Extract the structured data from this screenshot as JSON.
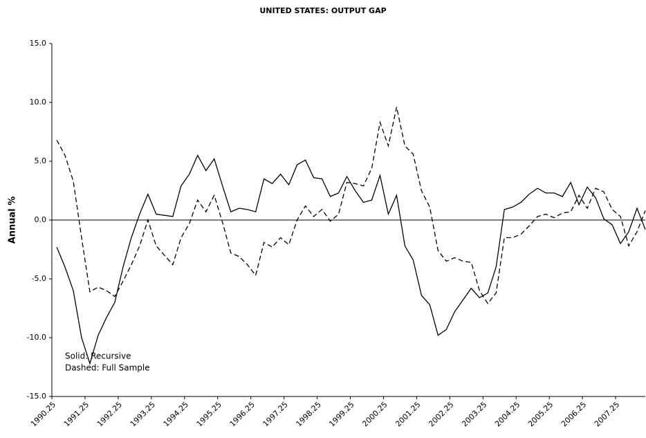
{
  "chart_data": {
    "type": "line",
    "title": "UNITED STATES: OUTPUT GAP",
    "ylabel": "Annual %",
    "annotations": [
      "Solid: Recursive",
      "Dashed: Full Sample"
    ],
    "x": [
      1990.25,
      1990.5,
      1990.75,
      1991,
      1991.25,
      1991.5,
      1991.75,
      1992,
      1992.25,
      1992.5,
      1992.75,
      1993,
      1993.25,
      1993.5,
      1993.75,
      1994,
      1994.25,
      1994.5,
      1994.75,
      1995,
      1995.25,
      1995.5,
      1995.75,
      1996,
      1996.25,
      1996.5,
      1996.75,
      1997,
      1997.25,
      1997.5,
      1997.75,
      1998,
      1998.25,
      1998.5,
      1998.75,
      1999,
      1999.25,
      1999.5,
      1999.75,
      2000,
      2000.25,
      2000.5,
      2000.75,
      2001,
      2001.25,
      2001.5,
      2001.75,
      2002,
      2002.25,
      2002.5,
      2002.75,
      2003,
      2003.25,
      2003.5,
      2003.75,
      2004,
      2004.25,
      2004.5,
      2004.75,
      2005,
      2005.25,
      2005.5,
      2005.75,
      2006,
      2006.25,
      2006.5,
      2006.75,
      2007,
      2007.25,
      2007.5,
      2007.75,
      2008
    ],
    "series": [
      {
        "color": "#000000",
        "style": "solid",
        "values": [
          -2.3,
          -4,
          -6,
          -10,
          -12.2,
          -9.8,
          -8.3,
          -7,
          -4,
          -1.5,
          0.5,
          2.2,
          0.5,
          0.4,
          0.3,
          2.9,
          3.9,
          5.5,
          4.2,
          5.2,
          2.9,
          0.7,
          1.0,
          0.9,
          0.7,
          3.5,
          3.1,
          3.9,
          3.0,
          4.7,
          5.1,
          3.6,
          3.5,
          2.0,
          2.3,
          3.7,
          2.5,
          1.5,
          1.7,
          3.8,
          0.5,
          2.1,
          -2.2,
          -3.4,
          -6.4,
          -7.2,
          -9.8,
          -9.3,
          -7.8,
          -6.8,
          -5.8,
          -6.6,
          -6.2,
          -4.0,
          0.9,
          1.1,
          1.5,
          2.2,
          2.7,
          2.3,
          2.3,
          2.0,
          3.2,
          1.3,
          2.8,
          1.9,
          0.1,
          -0.4,
          -2.0,
          -1.0,
          1.0,
          -0.8
        ]
      },
      {
        "color": "#000000",
        "style": "dashed",
        "values": [
          6.8,
          5.5,
          3.3,
          -1.5,
          -6.1,
          -5.7,
          -6.0,
          -6.5,
          -5.2,
          -3.8,
          -2.2,
          0.0,
          -2.2,
          -3.0,
          -3.8,
          -1.5,
          -0.3,
          1.7,
          0.7,
          2.1,
          -0.2,
          -2.8,
          -3.1,
          -3.8,
          -4.7,
          -1.9,
          -2.3,
          -1.5,
          -2.1,
          0.0,
          1.2,
          0.3,
          0.9,
          -0.1,
          0.5,
          3.2,
          3.1,
          2.9,
          4.4,
          8.3,
          6.3,
          9.6,
          6.3,
          5.6,
          2.5,
          1.1,
          -2.6,
          -3.5,
          -3.2,
          -3.5,
          -3.6,
          -6.0,
          -7.1,
          -6.2,
          -1.5,
          -1.5,
          -1.2,
          -0.5,
          0.3,
          0.5,
          0.2,
          0.6,
          0.7,
          2.1,
          1.0,
          2.7,
          2.4,
          0.9,
          0.3,
          -2.2,
          -1.0,
          0.8
        ]
      }
    ],
    "xlim": [
      1990.25,
      2008
    ],
    "xticks": [
      1990.25,
      1991.25,
      1992.25,
      1993.25,
      1994.25,
      1995.25,
      1996.25,
      1997.25,
      1998.25,
      1999.25,
      2000.25,
      2001.25,
      2002.25,
      2003.25,
      2004.25,
      2005.25,
      2006.25,
      2007.25
    ],
    "ylim": [
      -15,
      15
    ],
    "yticks": [
      {
        "value": -15,
        "label": "-15.0"
      },
      {
        "value": -10,
        "label": "-10.0"
      },
      {
        "value": -5,
        "label": "-5.0"
      },
      {
        "value": 0,
        "label": "0.0"
      },
      {
        "value": 5,
        "label": "5.0"
      },
      {
        "value": 10,
        "label": "10.0"
      },
      {
        "value": 15,
        "label": "15.0"
      }
    ],
    "grid": false
  }
}
